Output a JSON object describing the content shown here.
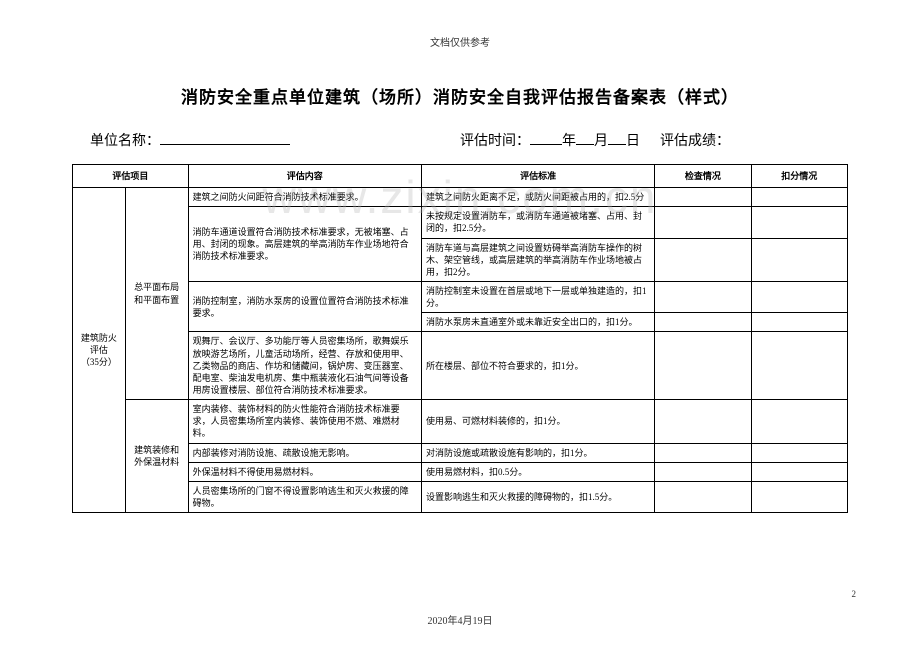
{
  "headerNote": "文档仅供参考",
  "watermark": "www.zixin.com.cn",
  "title": "消防安全重点单位建筑（场所）消防安全自我评估报告备案表（样式）",
  "meta": {
    "unitLabel": "单位名称：",
    "timeLabel": "评估时间：",
    "yearSuffix": "年",
    "monthSuffix": "月",
    "daySuffix": "日",
    "scoreLabel": "评估成绩："
  },
  "headers": {
    "item": "评估项目",
    "content": "评估内容",
    "standard": "评估标准",
    "check": "检查情况",
    "deduct": "扣分情况"
  },
  "category": {
    "name": "建筑防火评估",
    "points": "（35分）"
  },
  "sub1": "总平面布局和平面布置",
  "sub2": "建筑装修和外保温材料",
  "rows": [
    {
      "content": "建筑之间防火间距符合消防技术标准要求。",
      "standards": [
        "建筑之间防火距离不足，或防火间距被占用的，扣2.5分"
      ]
    },
    {
      "content": "消防车通道设置符合消防技术标准要求，无被堵塞、占用、封闭的现象。高层建筑的举高消防车作业场地符合消防技术标准要求。",
      "standards": [
        "未按规定设置消防车，或消防车通道被堵塞、占用、封闭的，扣2.5分。",
        "消防车道与高层建筑之间设置妨碍举高消防车操作的树木、架空管线，或高层建筑的举高消防车作业场地被占用，扣2分。"
      ]
    },
    {
      "content": "消防控制室，消防水泵房的设置位置符合消防技术标准要求。",
      "standards": [
        "消防控制室未设置在首层或地下一层或单独建造的，扣1分。",
        "消防水泵房未直通室外或未靠近安全出口的，扣1分。"
      ]
    },
    {
      "content": "观舞厅、会议厅、多功能厅等人员密集场所，歌舞娱乐放映游艺场所，儿童活动场所，经营、存放和使用甲、乙类物品的商店、作坊和储藏间，锅炉房、变压器室、配电室、柴油发电机房、集中瓶装液化石油气间等设备用房设置楼层、部位符合消防技术标准要求。",
      "standards": [
        "所在楼层、部位不符合要求的，扣1分。"
      ]
    },
    {
      "content": "室内装修、装饰材料的防火性能符合消防技术标准要求，人员密集场所室内装修、装饰使用不燃、难燃材料。",
      "standards": [
        "使用易、可燃材料装修的，扣1分。"
      ]
    },
    {
      "content": "内部装修对消防设施、疏散设施无影响。",
      "standards": [
        "对消防设施或疏散设施有影响的，扣1分。"
      ]
    },
    {
      "content": "外保温材料不得使用易燃材料。",
      "standards": [
        "使用易燃材料，扣0.5分。"
      ]
    },
    {
      "content": "人员密集场所的门窗不得设置影响逃生和灭火救援的障碍物。",
      "standards": [
        "设置影响逃生和灭火救援的障碍物的，扣1.5分。"
      ]
    }
  ],
  "footerDate": "2020年4月19日",
  "pageNum": "2"
}
